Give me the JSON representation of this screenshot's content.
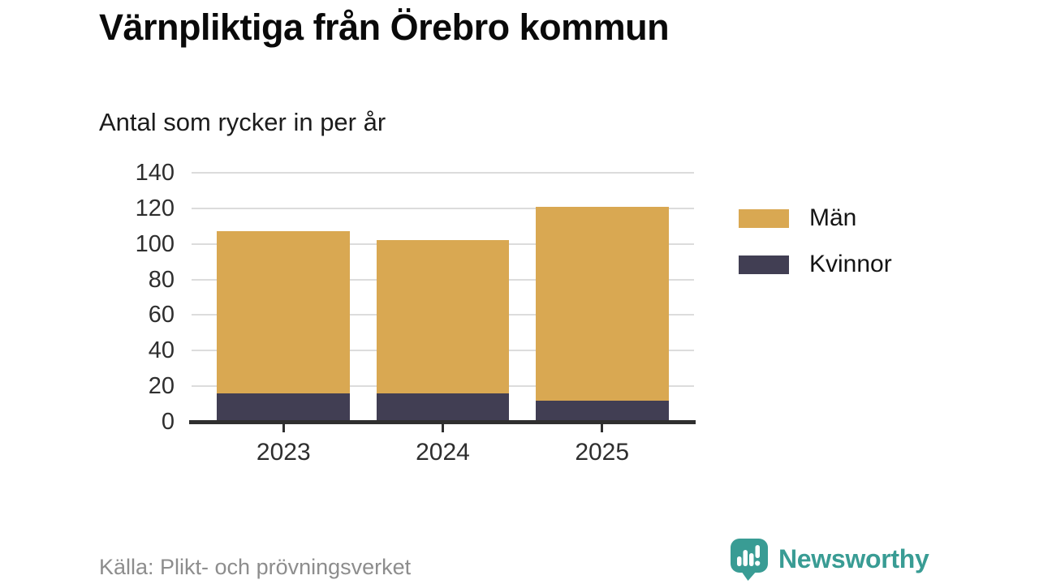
{
  "title": "Värnpliktiga från Örebro kommun",
  "subtitle": "Antal som rycker in per år",
  "source": "Källa: Plikt- och prövningsverket",
  "branding": {
    "logo_text": "Newsworthy",
    "logo_icon": "newsworthy-speech-bubble-bar-chart-icon",
    "logo_color": "#399c94"
  },
  "colors": {
    "men": "#d9a852",
    "women": "#413e53",
    "gridline": "#dcdcdc",
    "axis": "#2f2f2f"
  },
  "legend": {
    "items": [
      {
        "label": "Män",
        "color": "#d9a852"
      },
      {
        "label": "Kvinnor",
        "color": "#413e53"
      }
    ]
  },
  "chart_data": {
    "type": "bar",
    "stacked": true,
    "title": "Värnpliktiga från Örebro kommun",
    "subtitle": "Antal som rycker in per år",
    "categories": [
      "2023",
      "2024",
      "2025"
    ],
    "series": [
      {
        "name": "Män",
        "color_key": "men",
        "values": [
          91,
          86,
          109
        ]
      },
      {
        "name": "Kvinnor",
        "color_key": "women",
        "values": [
          16,
          16,
          12
        ]
      }
    ],
    "totals": [
      107,
      102,
      121
    ],
    "stack_order_bottom_to_top": [
      "Kvinnor",
      "Män"
    ],
    "xlabel": "",
    "ylabel": "",
    "ylim": [
      0,
      140
    ],
    "yticks": [
      0,
      20,
      40,
      60,
      80,
      100,
      120,
      140
    ],
    "grid": true,
    "legend_position": "right"
  }
}
